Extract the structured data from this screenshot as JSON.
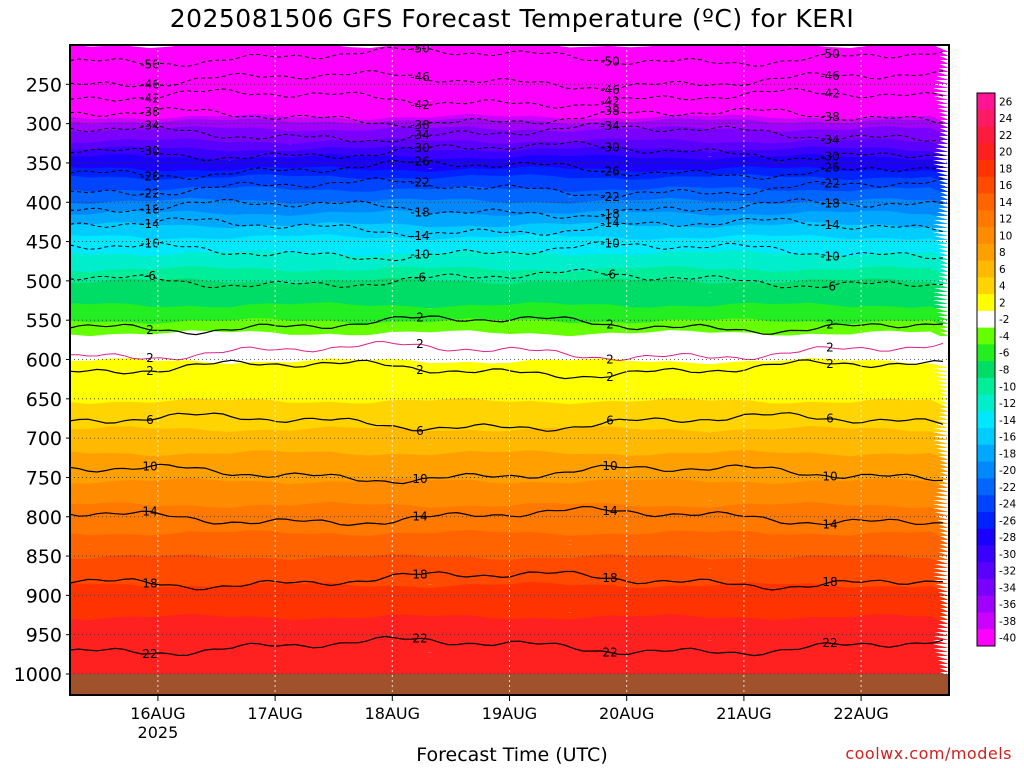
{
  "chart_data": {
    "type": "heatmap",
    "title": "2025081506 GFS Forecast Temperature (ºC) for KERI",
    "xlabel": "Forecast Time (UTC)",
    "credit": "coolwx.com/models",
    "y_ticks": [
      "250",
      "300",
      "350",
      "400",
      "450",
      "500",
      "550",
      "600",
      "650",
      "700",
      "750",
      "800",
      "850",
      "900",
      "950",
      "1000"
    ],
    "y_values": [
      250,
      300,
      350,
      400,
      450,
      500,
      550,
      600,
      650,
      700,
      750,
      800,
      850,
      900,
      950,
      1000
    ],
    "x_ticks": [
      {
        "label": "16AUG",
        "sub": "2025"
      },
      {
        "label": "17AUG",
        "sub": ""
      },
      {
        "label": "18AUG",
        "sub": ""
      },
      {
        "label": "19AUG",
        "sub": ""
      },
      {
        "label": "20AUG",
        "sub": ""
      },
      {
        "label": "21AUG",
        "sub": ""
      },
      {
        "label": "22AUG",
        "sub": ""
      }
    ],
    "x_ticks_hours": [
      18,
      42,
      66,
      90,
      114,
      138,
      162
    ],
    "x_range_hours": [
      0,
      180
    ],
    "y_range_hpa": [
      200,
      1000
    ],
    "colorbar_labels": [
      "26",
      "24",
      "22",
      "20",
      "18",
      "16",
      "14",
      "12",
      "10",
      "8",
      "6",
      "4",
      "2",
      "-2",
      "-4",
      "-6",
      "-8",
      "-10",
      "-12",
      "-14",
      "-16",
      "-18",
      "-20",
      "-22",
      "-24",
      "-26",
      "-28",
      "-30",
      "-32",
      "-34",
      "-36",
      "-38",
      "-40"
    ],
    "colorbar_colors": [
      "#ff1493",
      "#ff1a66",
      "#ff1a40",
      "#ff2020",
      "#ff3300",
      "#ff4a00",
      "#ff6400",
      "#ff7800",
      "#ff8c00",
      "#ffa000",
      "#ffba00",
      "#ffd400",
      "#ffff00",
      "#ffffff",
      "#66ff00",
      "#22ee22",
      "#00dd66",
      "#00ee99",
      "#00eecc",
      "#00e8ff",
      "#00ccff",
      "#00a8ff",
      "#0088ff",
      "#0066ff",
      "#0044ff",
      "#0022ff",
      "#1a00ff",
      "#3a00ff",
      "#5a00ff",
      "#7a00ff",
      "#a000ff",
      "#cc00ff",
      "#ff00ff"
    ],
    "ground_color": "#a0522d",
    "profile": {
      "note_free": true,
      "levels_hpa": [
        200,
        250,
        280,
        300,
        340,
        380,
        420,
        460,
        500,
        540,
        570,
        600,
        650,
        700,
        750,
        800,
        850,
        900,
        950,
        1000
      ],
      "temps_c": [
        -56,
        -47,
        -40,
        -35,
        -28,
        -22,
        -17,
        -12,
        -8,
        -5,
        -1,
        2,
        4,
        7,
        10,
        13,
        16,
        19,
        21,
        22
      ]
    },
    "contours": [
      {
        "value": -50,
        "p": 215,
        "style": "dashed"
      },
      {
        "value": -46,
        "p": 245,
        "style": "dashed"
      },
      {
        "value": -42,
        "p": 268,
        "style": "dashed"
      },
      {
        "value": -38,
        "p": 292,
        "style": "dashed"
      },
      {
        "value": -34,
        "p": 312,
        "style": "dashed"
      },
      {
        "value": -30,
        "p": 335,
        "style": "dashed"
      },
      {
        "value": -26,
        "p": 358,
        "style": "dashed"
      },
      {
        "value": -22,
        "p": 382,
        "style": "dashed"
      },
      {
        "value": -18,
        "p": 408,
        "style": "dashed"
      },
      {
        "value": -14,
        "p": 432,
        "style": "dashed"
      },
      {
        "value": -10,
        "p": 462,
        "style": "dashed"
      },
      {
        "value": -6,
        "p": 498,
        "style": "dashed"
      },
      {
        "value": 2,
        "p": 555,
        "style": "solid"
      },
      {
        "value": 2,
        "p": 590,
        "style": "magenta"
      },
      {
        "value": 2,
        "p": 612,
        "style": "solid"
      },
      {
        "value": 6,
        "p": 680,
        "style": "solid"
      },
      {
        "value": 10,
        "p": 745,
        "style": "solid"
      },
      {
        "value": 14,
        "p": 800,
        "style": "solid"
      },
      {
        "value": 18,
        "p": 880,
        "style": "solid"
      },
      {
        "value": 22,
        "p": 965,
        "style": "solid"
      }
    ],
    "grid": true,
    "legend": "right"
  },
  "labels": {
    "title": "2025081506 GFS Forecast Temperature (ºC) for KERI",
    "xlabel": "Forecast Time (UTC)",
    "credit": "coolwx.com/models"
  }
}
